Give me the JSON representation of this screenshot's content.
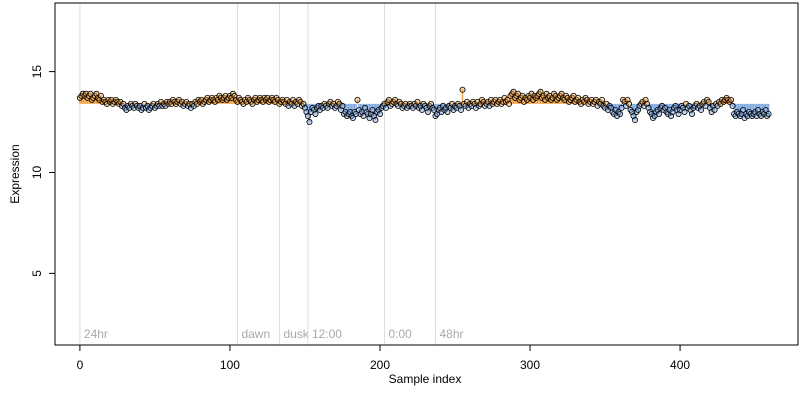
{
  "chart_data": {
    "type": "scatter",
    "x_label": "Sample index",
    "y_label": "Expression",
    "xlim": [
      -16.6,
      478.6
    ],
    "xticks": [
      0,
      100,
      200,
      300,
      400
    ],
    "ylim": [
      1.45,
      18.4
    ],
    "yticks": [
      5,
      10,
      15
    ],
    "baseline": 13.4,
    "above_color": "#f0a040",
    "below_color": "#7fa8e0",
    "annotations": [
      {
        "x": 0,
        "label": "24hr"
      },
      {
        "x": 105,
        "label": "dawn"
      },
      {
        "x": 133,
        "label": "dusk"
      },
      {
        "x": 152,
        "label": "12:00"
      },
      {
        "x": 203,
        "label": "0:00"
      },
      {
        "x": 237,
        "label": "48hr"
      }
    ],
    "x": [
      0,
      1,
      2,
      3,
      4,
      5,
      6,
      7,
      8,
      9,
      10,
      11,
      12,
      13,
      14,
      15,
      16,
      17,
      18,
      19,
      20,
      21,
      22,
      23,
      24,
      25,
      26,
      27,
      28,
      29,
      30,
      31,
      32,
      33,
      34,
      35,
      36,
      37,
      38,
      39,
      40,
      41,
      42,
      43,
      44,
      45,
      46,
      47,
      48,
      49,
      50,
      51,
      52,
      53,
      54,
      55,
      56,
      57,
      58,
      59,
      60,
      61,
      62,
      63,
      64,
      65,
      66,
      67,
      68,
      69,
      70,
      71,
      72,
      73,
      74,
      75,
      76,
      77,
      78,
      79,
      80,
      81,
      82,
      83,
      84,
      85,
      86,
      87,
      88,
      89,
      90,
      91,
      92,
      93,
      94,
      95,
      96,
      97,
      98,
      99,
      100,
      101,
      102,
      103,
      104,
      105,
      106,
      107,
      108,
      109,
      110,
      111,
      112,
      113,
      114,
      115,
      116,
      117,
      118,
      119,
      120,
      121,
      122,
      123,
      124,
      125,
      126,
      127,
      128,
      129,
      130,
      131,
      132,
      133,
      134,
      135,
      136,
      137,
      138,
      139,
      140,
      141,
      142,
      143,
      144,
      145,
      146,
      147,
      148,
      149,
      150,
      151,
      152,
      153,
      154,
      155,
      156,
      157,
      158,
      159,
      160,
      161,
      162,
      163,
      164,
      165,
      166,
      167,
      168,
      169,
      170,
      171,
      172,
      173,
      174,
      175,
      176,
      177,
      178,
      179,
      180,
      181,
      182,
      183,
      184,
      185,
      186,
      187,
      188,
      189,
      190,
      191,
      192,
      193,
      194,
      195,
      196,
      197,
      198,
      199,
      200,
      201,
      202,
      203,
      204,
      205,
      206,
      207,
      208,
      209,
      210,
      211,
      212,
      213,
      214,
      215,
      216,
      217,
      218,
      219,
      220,
      221,
      222,
      223,
      224,
      225,
      226,
      227,
      228,
      229,
      230,
      231,
      232,
      233,
      234,
      235,
      236,
      237,
      238,
      239,
      240,
      241,
      242,
      243,
      244,
      245,
      246,
      247,
      248,
      249,
      250,
      251,
      252,
      253,
      254,
      255,
      256,
      257,
      258,
      259,
      260,
      261,
      262,
      263,
      264,
      265,
      266,
      267,
      268,
      269,
      270,
      271,
      272,
      273,
      274,
      275,
      276,
      277,
      278,
      279,
      280,
      281,
      282,
      283,
      284,
      285,
      286,
      287,
      288,
      289,
      290,
      291,
      292,
      293,
      294,
      295,
      296,
      297,
      298,
      299,
      300,
      301,
      302,
      303,
      304,
      305,
      306,
      307,
      308,
      309,
      310,
      311,
      312,
      313,
      314,
      315,
      316,
      317,
      318,
      319,
      320,
      321,
      322,
      323,
      324,
      325,
      326,
      327,
      328,
      329,
      330,
      331,
      332,
      333,
      334,
      335,
      336,
      337,
      338,
      339,
      340,
      341,
      342,
      343,
      344,
      345,
      346,
      347,
      348,
      349,
      350,
      351,
      352,
      353,
      354,
      355,
      356,
      357,
      358,
      359,
      360,
      361,
      362,
      363,
      364,
      365,
      366,
      367,
      368,
      369,
      370,
      371,
      372,
      373,
      374,
      375,
      376,
      377,
      378,
      379,
      380,
      381,
      382,
      383,
      384,
      385,
      386,
      387,
      388,
      389,
      390,
      391,
      392,
      393,
      394,
      395,
      396,
      397,
      398,
      399,
      400,
      401,
      402,
      403,
      404,
      405,
      406,
      407,
      408,
      409,
      410,
      411,
      412,
      413,
      414,
      415,
      416,
      417,
      418,
      419,
      420,
      421,
      422,
      423,
      424,
      425,
      426,
      427,
      428,
      429,
      430,
      431,
      432,
      433,
      434,
      435,
      436,
      437,
      438,
      439,
      440,
      441,
      442,
      443,
      444,
      445,
      446,
      447,
      448,
      449,
      450,
      451,
      452,
      453,
      454,
      455,
      456,
      457,
      458,
      459
    ],
    "values": [
      13.7,
      13.8,
      13.9,
      13.8,
      13.9,
      13.7,
      13.8,
      13.9,
      13.6,
      13.7,
      13.8,
      13.9,
      13.7,
      13.6,
      13.8,
      13.5,
      13.6,
      13.5,
      13.4,
      13.6,
      13.5,
      13.6,
      13.4,
      13.5,
      13.6,
      13.5,
      13.4,
      13.5,
      13.3,
      13.4,
      13.2,
      13.1,
      13.3,
      13.2,
      13.4,
      13.3,
      13.2,
      13.4,
      13.3,
      13.2,
      13.3,
      13.1,
      13.2,
      13.4,
      13.2,
      13.3,
      13.1,
      13.2,
      13.3,
      13.4,
      13.2,
      13.3,
      13.4,
      13.3,
      13.5,
      13.3,
      13.4,
      13.3,
      13.5,
      13.4,
      13.5,
      13.4,
      13.6,
      13.5,
      13.4,
      13.5,
      13.6,
      13.4,
      13.5,
      13.3,
      13.4,
      13.5,
      13.3,
      13.4,
      13.2,
      13.4,
      13.3,
      13.5,
      13.4,
      13.6,
      13.5,
      13.6,
      13.4,
      13.5,
      13.6,
      13.7,
      13.5,
      13.6,
      13.7,
      13.6,
      13.5,
      13.7,
      13.6,
      13.8,
      13.7,
      13.6,
      13.7,
      13.8,
      13.6,
      13.7,
      13.8,
      13.7,
      13.9,
      13.8,
      13.6,
      13.5,
      13.7,
      13.6,
      13.5,
      13.4,
      13.6,
      13.5,
      13.7,
      13.6,
      13.5,
      13.4,
      13.6,
      13.7,
      13.5,
      13.6,
      13.7,
      13.6,
      13.5,
      13.7,
      13.6,
      13.7,
      13.5,
      13.6,
      13.7,
      13.6,
      13.5,
      13.7,
      13.6,
      13.4,
      13.5,
      13.6,
      13.5,
      13.4,
      13.6,
      13.3,
      13.5,
      13.4,
      13.6,
      13.3,
      13.5,
      13.4,
      13.6,
      13.5,
      13.3,
      13.4,
      13.2,
      13.0,
      12.8,
      12.5,
      13.0,
      13.2,
      13.1,
      12.9,
      13.2,
      13.3,
      13.1,
      13.3,
      13.2,
      13.4,
      13.3,
      13.2,
      13.4,
      13.5,
      13.3,
      13.4,
      13.2,
      13.3,
      13.5,
      13.4,
      13.1,
      13.3,
      12.9,
      13.0,
      12.8,
      12.9,
      13.0,
      12.8,
      12.7,
      13.0,
      12.9,
      13.6,
      13.1,
      12.9,
      13.0,
      12.8,
      13.2,
      13.0,
      12.9,
      12.7,
      12.9,
      13.1,
      12.8,
      12.6,
      13.0,
      13.1,
      12.9,
      13.2,
      13.3,
      13.4,
      13.2,
      13.5,
      13.6,
      13.3,
      13.4,
      13.5,
      13.6,
      13.4,
      13.3,
      13.5,
      13.4,
      13.2,
      13.3,
      13.4,
      13.2,
      13.3,
      13.4,
      13.3,
      13.2,
      13.4,
      13.3,
      13.5,
      13.2,
      13.3,
      13.1,
      13.4,
      13.3,
      13.2,
      13.0,
      13.3,
      13.4,
      13.2,
      13.1,
      12.8,
      12.9,
      13.1,
      13.2,
      13.0,
      13.3,
      13.1,
      13.2,
      13.0,
      13.3,
      13.2,
      13.4,
      13.1,
      13.3,
      13.2,
      13.4,
      13.3,
      13.1,
      14.1,
      13.4,
      13.3,
      13.5,
      13.2,
      13.4,
      13.3,
      13.5,
      13.4,
      13.2,
      13.5,
      13.3,
      13.4,
      13.6,
      13.5,
      13.3,
      13.4,
      13.5,
      13.3,
      13.6,
      13.4,
      13.5,
      13.6,
      13.4,
      13.5,
      13.6,
      13.4,
      13.5,
      13.7,
      13.5,
      13.6,
      13.4,
      13.8,
      13.9,
      14.0,
      13.7,
      13.8,
      13.9,
      13.6,
      13.7,
      13.8,
      13.5,
      13.7,
      13.6,
      13.8,
      13.7,
      13.9,
      13.6,
      13.8,
      13.7,
      13.8,
      13.9,
      14.0,
      13.7,
      13.8,
      13.6,
      13.9,
      13.7,
      13.8,
      13.6,
      13.7,
      13.9,
      13.8,
      13.6,
      13.7,
      13.8,
      13.9,
      13.7,
      13.6,
      13.8,
      13.7,
      13.5,
      13.6,
      13.7,
      13.8,
      13.5,
      13.6,
      13.7,
      13.5,
      13.4,
      13.6,
      13.5,
      13.7,
      13.6,
      13.4,
      13.5,
      13.6,
      13.4,
      13.5,
      13.6,
      13.3,
      13.5,
      13.4,
      13.6,
      13.3,
      13.2,
      13.4,
      13.1,
      13.3,
      13.2,
      13.0,
      12.9,
      13.1,
      12.8,
      13.0,
      12.9,
      13.2,
      13.6,
      13.5,
      13.3,
      13.6,
      13.4,
      13.1,
      13.0,
      12.8,
      12.6,
      13.0,
      13.1,
      13.3,
      13.4,
      13.5,
      13.3,
      13.6,
      13.4,
      13.2,
      13.0,
      12.9,
      12.7,
      12.8,
      13.0,
      13.1,
      12.9,
      13.2,
      13.3,
      13.1,
      13.2,
      13.0,
      12.9,
      13.1,
      12.8,
      13.0,
      13.2,
      13.3,
      13.1,
      12.9,
      13.1,
      13.3,
      13.2,
      13.0,
      13.4,
      13.2,
      13.3,
      13.1,
      12.9,
      13.2,
      13.3,
      13.4,
      13.2,
      13.3,
      13.1,
      13.4,
      13.5,
      13.3,
      13.6,
      13.5,
      13.2,
      13.0,
      13.3,
      13.1,
      13.4,
      13.3,
      13.5,
      13.4,
      13.6,
      13.5,
      13.6,
      13.7,
      13.6,
      13.5,
      13.6,
      13.3,
      12.9,
      12.8,
      13.0,
      12.9,
      12.8,
      12.9,
      13.1,
      12.7,
      12.9,
      12.8,
      13.0,
      12.9,
      12.8,
      12.9,
      13.0,
      12.8,
      13.1,
      12.9,
      12.8,
      13.0,
      12.9,
      13.1,
      12.8,
      12.9
    ]
  }
}
